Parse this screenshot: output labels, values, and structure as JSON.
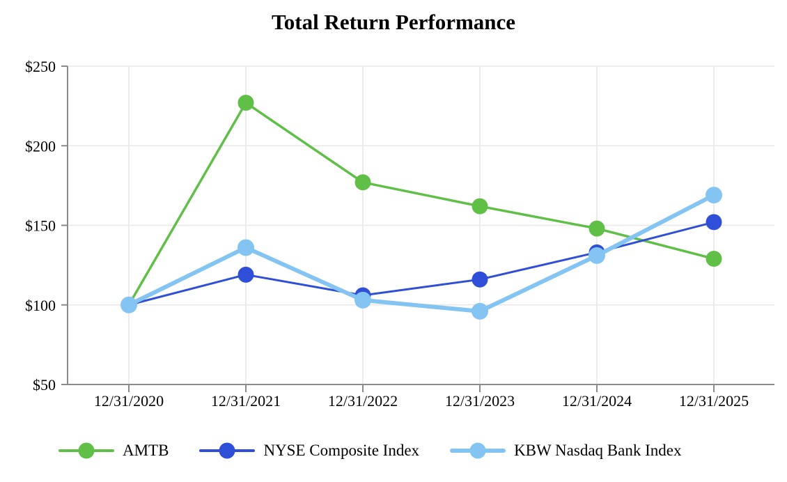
{
  "title": "Total Return Performance",
  "chart_data": {
    "type": "line",
    "title": "Total Return Performance",
    "x": [
      "12/31/2020",
      "12/31/2021",
      "12/31/2022",
      "12/31/2023",
      "12/31/2024",
      "12/31/2025"
    ],
    "series": [
      {
        "name": "AMTB",
        "color": "#5fbf47",
        "line_width": 3.5,
        "marker_radius": 11.5,
        "values": [
          100,
          227,
          177,
          162,
          148,
          129
        ]
      },
      {
        "name": "NYSE Composite Index",
        "color": "#2f4fd9",
        "line_width": 3,
        "marker_radius": 11.5,
        "values": [
          100,
          119,
          106,
          116,
          133,
          152
        ]
      },
      {
        "name": "KBW Nasdaq Bank Index",
        "color": "#84c4f2",
        "line_width": 6,
        "marker_radius": 12,
        "values": [
          100,
          136,
          103,
          96,
          131,
          169
        ]
      }
    ],
    "ylim": [
      50,
      250
    ],
    "y_ticks": [
      50,
      100,
      150,
      200,
      250
    ],
    "y_tick_labels": [
      "$50",
      "$100",
      "$150",
      "$200",
      "$250"
    ],
    "grid": true,
    "legend_position": "bottom",
    "colors": {
      "grid": "#e8e8e8",
      "axis": "#8a8a8a",
      "text": "#000000",
      "background": "#ffffff"
    }
  }
}
